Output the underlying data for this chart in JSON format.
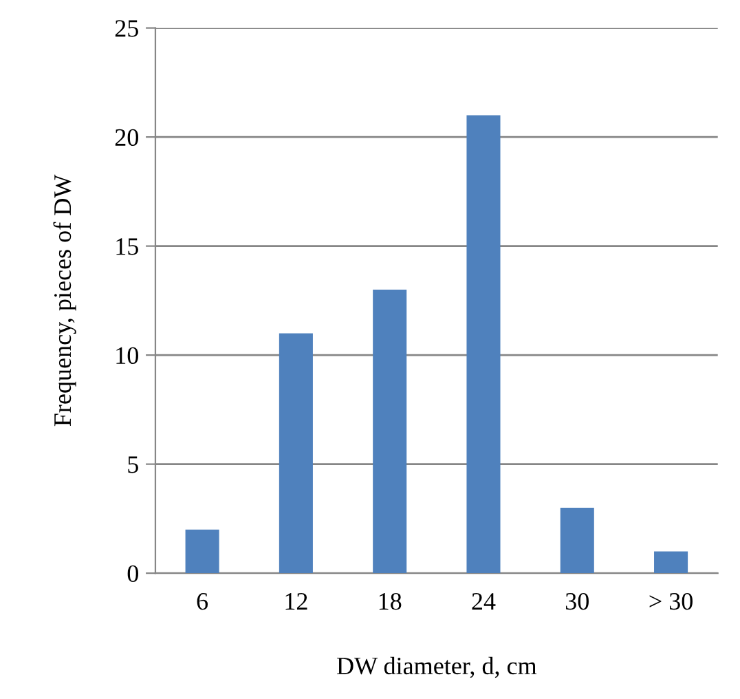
{
  "chart_data": {
    "type": "bar",
    "xlabel": "DW diameter, d, cm",
    "ylabel": "Frequency, pieces of DW",
    "categories": [
      "6",
      "12",
      "18",
      "24",
      "30",
      "> 30"
    ],
    "series": [
      {
        "color": "#4f81bd",
        "values": [
          2,
          11,
          13,
          21,
          3,
          1
        ]
      }
    ],
    "ylim": [
      0,
      25
    ],
    "yticks": [
      0,
      5,
      10,
      15,
      20,
      25
    ],
    "grid": "y",
    "legend": false
  }
}
